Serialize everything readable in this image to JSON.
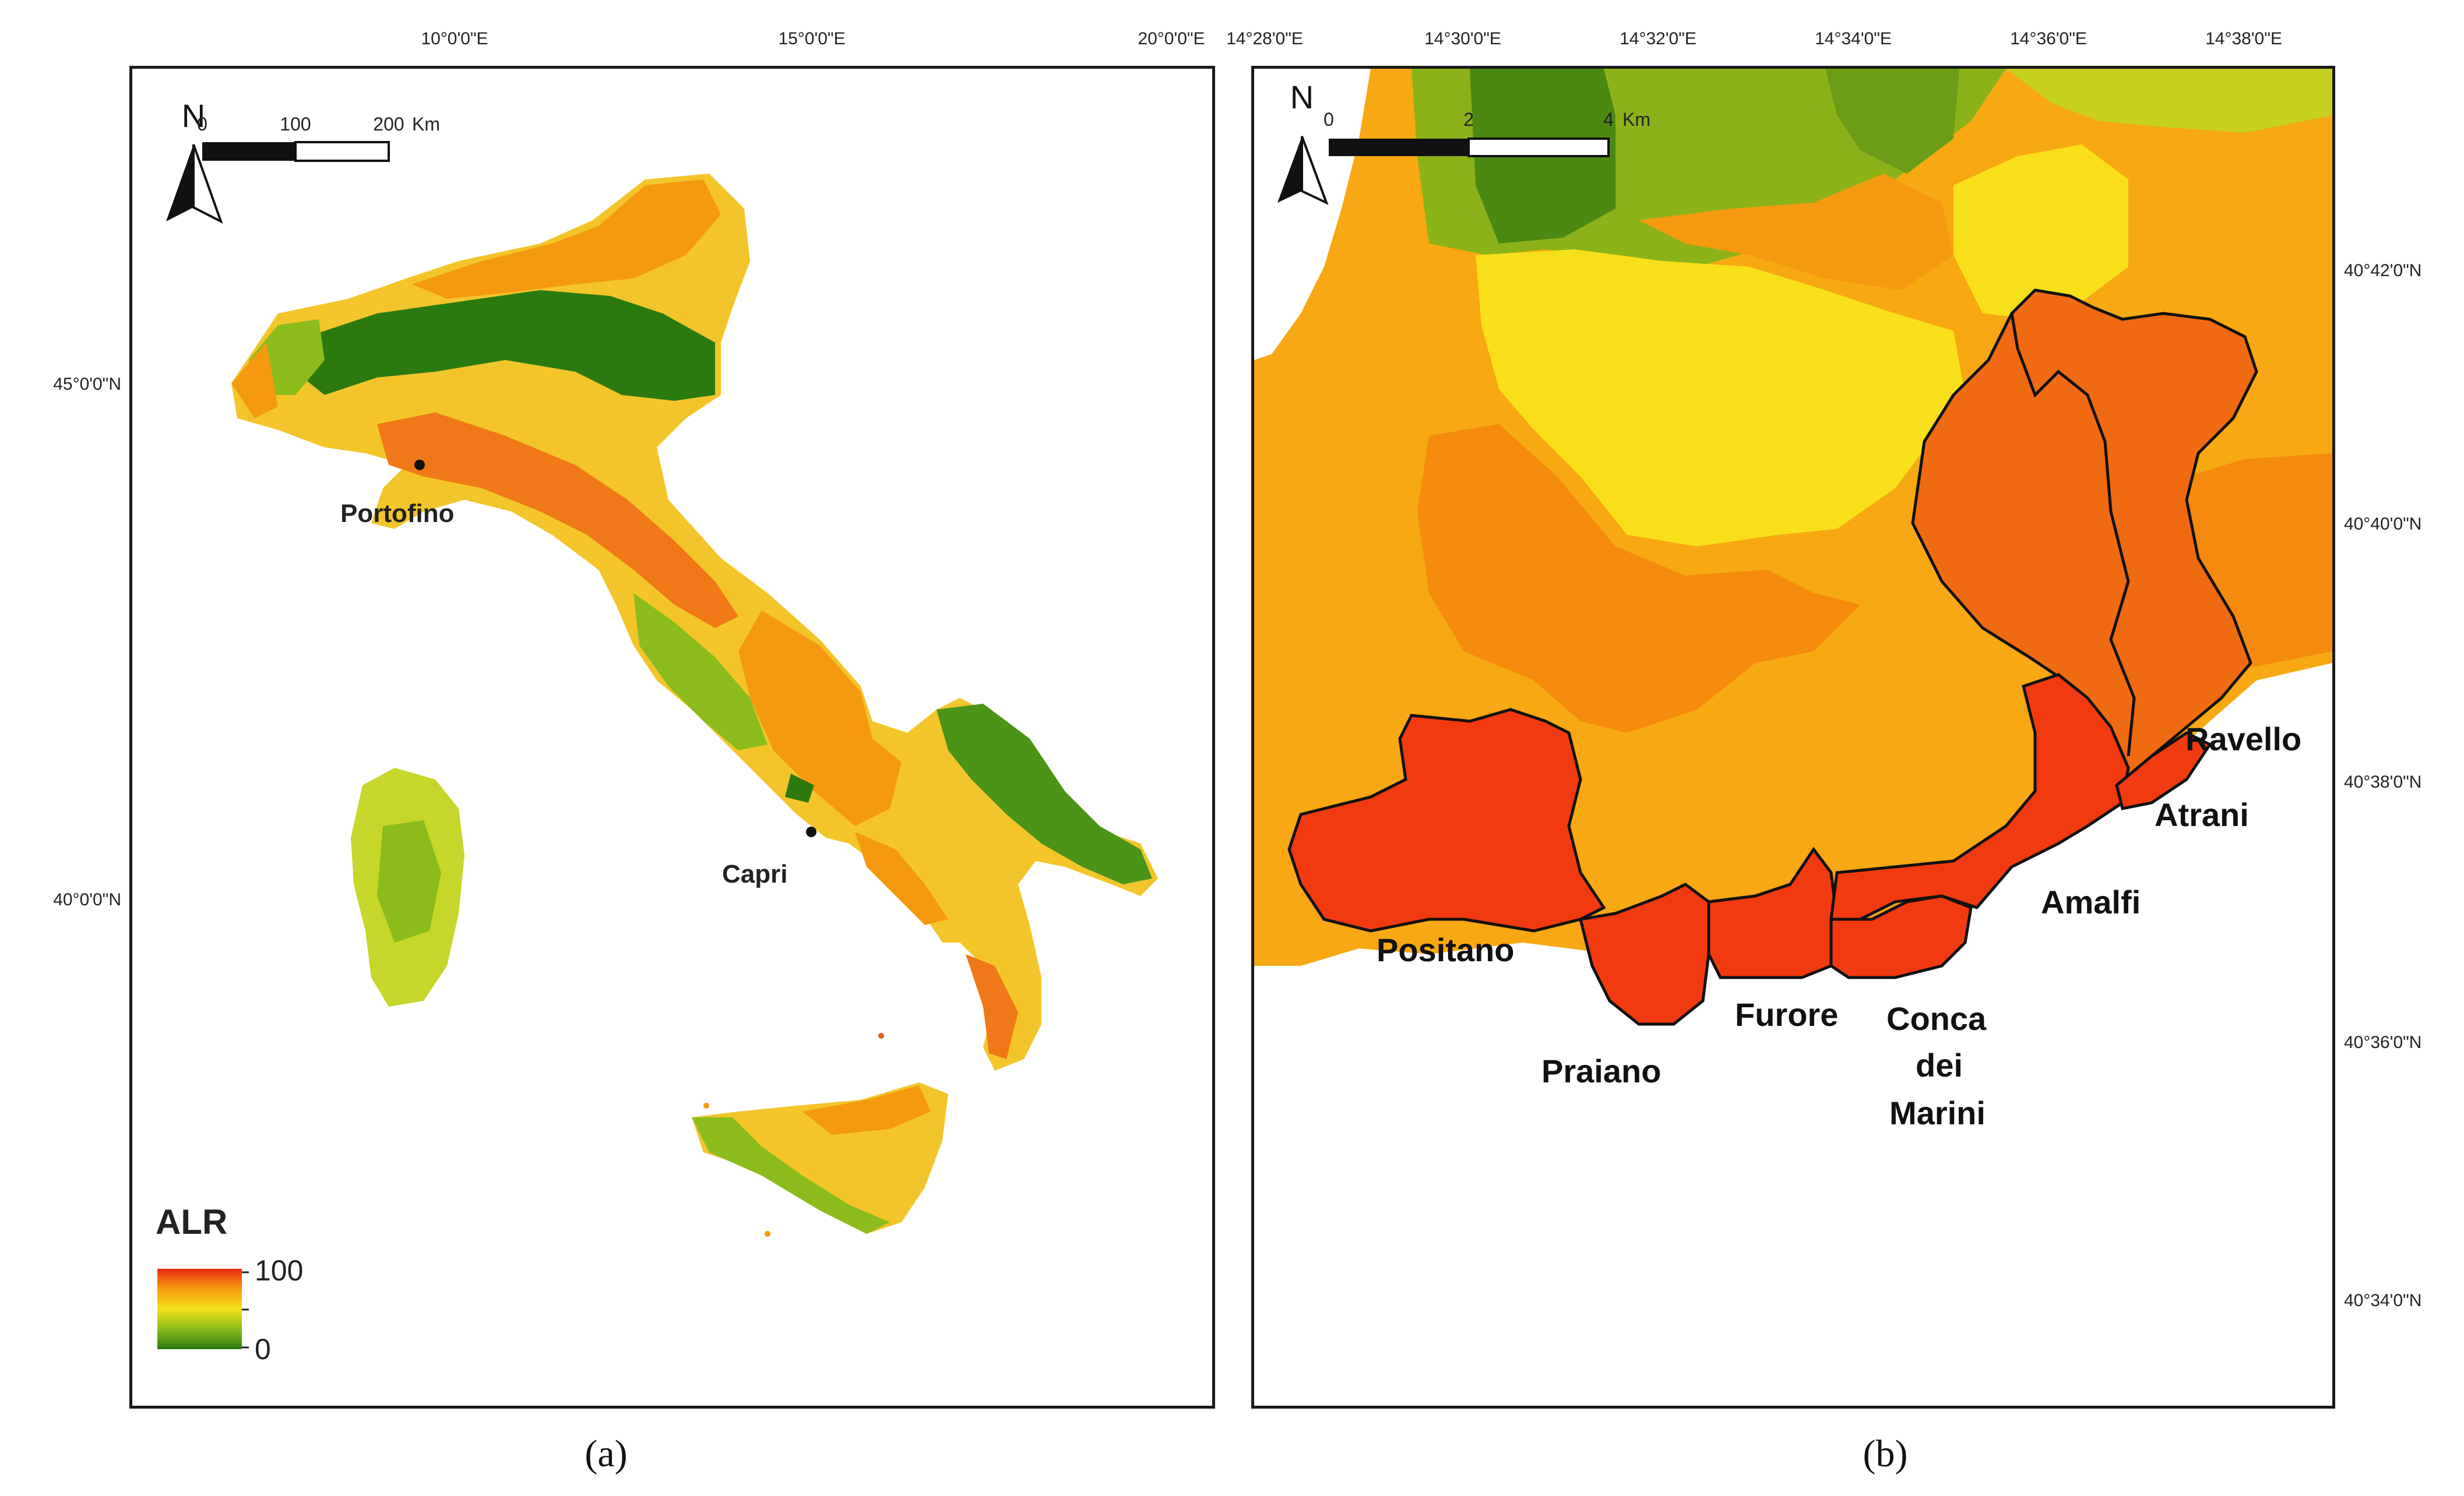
{
  "figure": {
    "panel_a": {
      "caption": "(a)",
      "lon_ticks": [
        "10°0'0\"E",
        "15°0'0\"E",
        "20°0'0\"E"
      ],
      "lat_ticks": [
        "45°0'0\"N",
        "40°0'0\"N"
      ],
      "north_label": "N",
      "scale_bar": {
        "labels": [
          "0",
          "100",
          "200"
        ],
        "unit": "Km"
      },
      "places": [
        {
          "name": "Portofino"
        },
        {
          "name": "Capri"
        }
      ],
      "legend": {
        "title": "ALR",
        "max": "100",
        "min": "0",
        "colors": [
          "#e82c0c",
          "#f59a10",
          "#f2e21a",
          "#8cbc1c",
          "#2a7a10"
        ]
      }
    },
    "panel_b": {
      "caption": "(b)",
      "lon_ticks": [
        "14°28'0\"E",
        "14°30'0\"E",
        "14°32'0\"E",
        "14°34'0\"E",
        "14°36'0\"E",
        "14°38'0\"E"
      ],
      "lat_ticks": [
        "40°42'0\"N",
        "40°40'0\"N",
        "40°38'0\"N",
        "40°36'0\"N",
        "40°34'0\"N"
      ],
      "north_label": "N",
      "scale_bar": {
        "labels": [
          "0",
          "2",
          "4"
        ],
        "unit": "Km"
      },
      "municipalities": [
        {
          "name": "Positano"
        },
        {
          "name": "Praiano"
        },
        {
          "name": "Furore"
        },
        {
          "name": "Conca"
        },
        {
          "name": "dei"
        },
        {
          "name": "Marini"
        },
        {
          "name": "Amalfi"
        },
        {
          "name": "Atrani"
        },
        {
          "name": "Ravello"
        }
      ]
    }
  }
}
